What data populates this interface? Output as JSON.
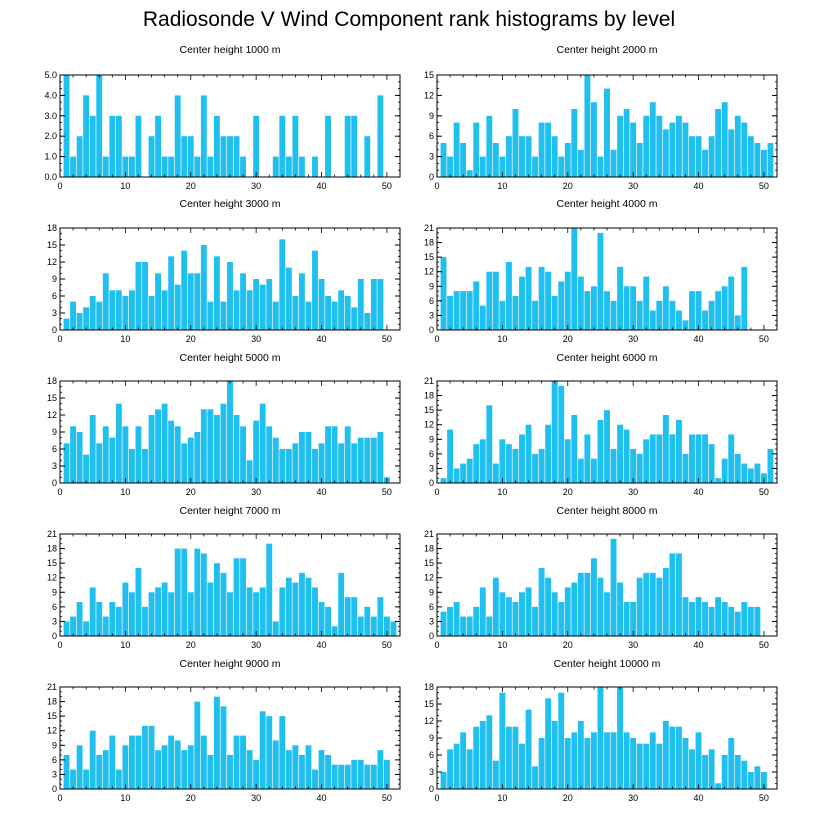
{
  "figure_title": "Radiosonde V Wind Component rank histograms by level",
  "bar_color": "#1fbff0",
  "chart_data": [
    {
      "type": "bar",
      "title": "Center height 1000 m",
      "xlim": [
        0,
        52
      ],
      "ylim": [
        0,
        5
      ],
      "yticks": [
        0,
        1,
        2,
        3,
        4,
        5
      ],
      "ytick_labels": [
        "0.0",
        "1.0",
        "2.0",
        "3.0",
        "4.0",
        "5.0"
      ],
      "xticks": [
        0,
        10,
        20,
        30,
        40,
        50
      ],
      "values": [
        5,
        1,
        2,
        4,
        3,
        5,
        1,
        3,
        3,
        1,
        1,
        3,
        0,
        2,
        3,
        1,
        1,
        4,
        2,
        2,
        1,
        4,
        1,
        3,
        2,
        2,
        2,
        1,
        0,
        3,
        0,
        0,
        1,
        3,
        1,
        3,
        1,
        0,
        1,
        0,
        3,
        0,
        0,
        3,
        3,
        0,
        2,
        0,
        4
      ]
    },
    {
      "type": "bar",
      "title": "Center height 2000 m",
      "xlim": [
        0,
        52
      ],
      "ylim": [
        0,
        15
      ],
      "yticks": [
        0,
        3,
        6,
        9,
        12,
        15
      ],
      "ytick_labels": [
        "0",
        "3",
        "6",
        "9",
        "12",
        "15"
      ],
      "xticks": [
        0,
        10,
        20,
        30,
        40,
        50
      ],
      "values": [
        5,
        3,
        8,
        5,
        1,
        8,
        3,
        9,
        5,
        3,
        6,
        10,
        6,
        6,
        3,
        8,
        8,
        6,
        3,
        5,
        10,
        4,
        15,
        11,
        3,
        13,
        4,
        9,
        10,
        8,
        5,
        9,
        11,
        9,
        7,
        8,
        9,
        8,
        6,
        6,
        4,
        6,
        10,
        11,
        7,
        9,
        8,
        6,
        5,
        4,
        5
      ]
    },
    {
      "type": "bar",
      "title": "Center height 3000 m",
      "xlim": [
        0,
        52
      ],
      "ylim": [
        0,
        18
      ],
      "yticks": [
        0,
        3,
        6,
        9,
        12,
        15,
        18
      ],
      "ytick_labels": [
        "0",
        "3",
        "6",
        "9",
        "12",
        "15",
        "18"
      ],
      "xticks": [
        0,
        10,
        20,
        30,
        40,
        50
      ],
      "values": [
        2,
        5,
        3,
        4,
        6,
        5,
        10,
        7,
        7,
        6,
        7,
        12,
        12,
        6,
        10,
        7,
        13,
        8,
        14,
        10,
        10,
        15,
        5,
        13,
        5,
        12,
        7,
        10,
        7,
        9,
        8,
        9,
        5,
        16,
        11,
        6,
        10,
        5,
        14,
        9,
        6,
        5,
        7,
        6,
        4,
        9,
        3,
        9,
        9
      ]
    },
    {
      "type": "bar",
      "title": "Center height 4000 m",
      "xlim": [
        0,
        52
      ],
      "ylim": [
        0,
        21
      ],
      "yticks": [
        0,
        3,
        6,
        9,
        12,
        15,
        18,
        21
      ],
      "ytick_labels": [
        "0",
        "3",
        "6",
        "9",
        "12",
        "15",
        "18",
        "21"
      ],
      "xticks": [
        0,
        10,
        20,
        30,
        40,
        50
      ],
      "values": [
        15,
        7,
        8,
        8,
        8,
        10,
        5,
        12,
        12,
        6,
        14,
        7,
        11,
        13,
        6,
        13,
        12,
        7,
        10,
        12,
        21,
        11,
        8,
        9,
        20,
        8,
        6,
        13,
        9,
        9,
        6,
        11,
        4,
        6,
        9,
        6,
        4,
        2,
        8,
        8,
        4,
        6,
        8,
        9,
        11,
        3,
        13
      ]
    },
    {
      "type": "bar",
      "title": "Center height 5000 m",
      "xlim": [
        0,
        52
      ],
      "ylim": [
        0,
        18
      ],
      "yticks": [
        0,
        3,
        6,
        9,
        12,
        15,
        18
      ],
      "ytick_labels": [
        "0",
        "3",
        "6",
        "9",
        "12",
        "15",
        "18"
      ],
      "xticks": [
        0,
        10,
        20,
        30,
        40,
        50
      ],
      "values": [
        7,
        10,
        9,
        5,
        12,
        7,
        10,
        8,
        14,
        10,
        6,
        10,
        6,
        12,
        13,
        14,
        11,
        10,
        7,
        8,
        9,
        13,
        13,
        12,
        14,
        18,
        12,
        10,
        4,
        11,
        14,
        10,
        8,
        6,
        6,
        7,
        9,
        9,
        6,
        7,
        10,
        10,
        7,
        10,
        7,
        8,
        8,
        8,
        9,
        1
      ]
    },
    {
      "type": "bar",
      "title": "Center height 6000 m",
      "xlim": [
        0,
        52
      ],
      "ylim": [
        0,
        21
      ],
      "yticks": [
        0,
        3,
        6,
        9,
        12,
        15,
        18,
        21
      ],
      "ytick_labels": [
        "0",
        "3",
        "6",
        "9",
        "12",
        "15",
        "18",
        "21"
      ],
      "xticks": [
        0,
        10,
        20,
        30,
        40,
        50
      ],
      "values": [
        1,
        11,
        3,
        4,
        5,
        8,
        9,
        16,
        4,
        9,
        8,
        7,
        10,
        12,
        6,
        7,
        12,
        21,
        20,
        9,
        14,
        5,
        10,
        5,
        13,
        15,
        7,
        12,
        11,
        7,
        6,
        9,
        10,
        10,
        14,
        10,
        13,
        6,
        10,
        10,
        10,
        8,
        1,
        5,
        10,
        6,
        4,
        3,
        4,
        2,
        7
      ]
    },
    {
      "type": "bar",
      "title": "Center height 7000 m",
      "xlim": [
        0,
        52
      ],
      "ylim": [
        0,
        21
      ],
      "yticks": [
        0,
        3,
        6,
        9,
        12,
        15,
        18,
        21
      ],
      "ytick_labels": [
        "0",
        "3",
        "6",
        "9",
        "12",
        "15",
        "18",
        "21"
      ],
      "xticks": [
        0,
        10,
        20,
        30,
        40,
        50
      ],
      "values": [
        3,
        4,
        7,
        3,
        10,
        7,
        4,
        7,
        6,
        11,
        9,
        14,
        6,
        9,
        10,
        11,
        9,
        18,
        18,
        9,
        18,
        17,
        11,
        15,
        13,
        9,
        16,
        16,
        10,
        9,
        10,
        19,
        3,
        10,
        12,
        11,
        13,
        12,
        10,
        7,
        6,
        2,
        13,
        8,
        8,
        4,
        6,
        4,
        8,
        4,
        3
      ]
    },
    {
      "type": "bar",
      "title": "Center height 8000 m",
      "xlim": [
        0,
        52
      ],
      "ylim": [
        0,
        21
      ],
      "yticks": [
        0,
        3,
        6,
        9,
        12,
        15,
        18,
        21
      ],
      "ytick_labels": [
        "0",
        "3",
        "6",
        "9",
        "12",
        "15",
        "18",
        "21"
      ],
      "xticks": [
        0,
        10,
        20,
        30,
        40,
        50
      ],
      "values": [
        5,
        6,
        7,
        4,
        4,
        6,
        10,
        4,
        12,
        9,
        8,
        7,
        9,
        10,
        6,
        14,
        12,
        9,
        7,
        10,
        11,
        13,
        13,
        16,
        12,
        9,
        20,
        11,
        7,
        7,
        12,
        13,
        13,
        12,
        14,
        17,
        17,
        8,
        7,
        8,
        7,
        6,
        8,
        7,
        6,
        5,
        7,
        6,
        6
      ]
    },
    {
      "type": "bar",
      "title": "Center height 9000 m",
      "xlim": [
        0,
        52
      ],
      "ylim": [
        0,
        21
      ],
      "yticks": [
        0,
        3,
        6,
        9,
        12,
        15,
        18,
        21
      ],
      "ytick_labels": [
        "0",
        "3",
        "6",
        "9",
        "12",
        "15",
        "18",
        "21"
      ],
      "xticks": [
        0,
        10,
        20,
        30,
        40,
        50
      ],
      "values": [
        7,
        4,
        9,
        4,
        12,
        7,
        8,
        11,
        4,
        9,
        11,
        11,
        13,
        13,
        8,
        9,
        11,
        10,
        8,
        9,
        18,
        11,
        7,
        19,
        17,
        7,
        11,
        11,
        8,
        6,
        16,
        15,
        10,
        15,
        8,
        9,
        7,
        9,
        4,
        8,
        7,
        5,
        5,
        5,
        6,
        6,
        5,
        5,
        8,
        6
      ]
    },
    {
      "type": "bar",
      "title": "Center height 10000 m",
      "xlim": [
        0,
        52
      ],
      "ylim": [
        0,
        18
      ],
      "yticks": [
        0,
        3,
        6,
        9,
        12,
        15,
        18
      ],
      "ytick_labels": [
        "0",
        "3",
        "6",
        "9",
        "12",
        "15",
        "18"
      ],
      "xticks": [
        0,
        10,
        20,
        30,
        40,
        50
      ],
      "values": [
        3,
        7,
        8,
        10,
        7,
        11,
        12,
        13,
        5,
        17,
        11,
        11,
        8,
        14,
        4,
        9,
        16,
        12,
        17,
        9,
        10,
        12,
        9,
        10,
        18,
        10,
        10,
        18,
        10,
        9,
        8,
        8,
        10,
        8,
        12,
        11,
        11,
        9,
        7,
        10,
        6,
        7,
        1,
        6,
        9,
        6,
        5,
        3,
        4,
        3
      ]
    }
  ]
}
